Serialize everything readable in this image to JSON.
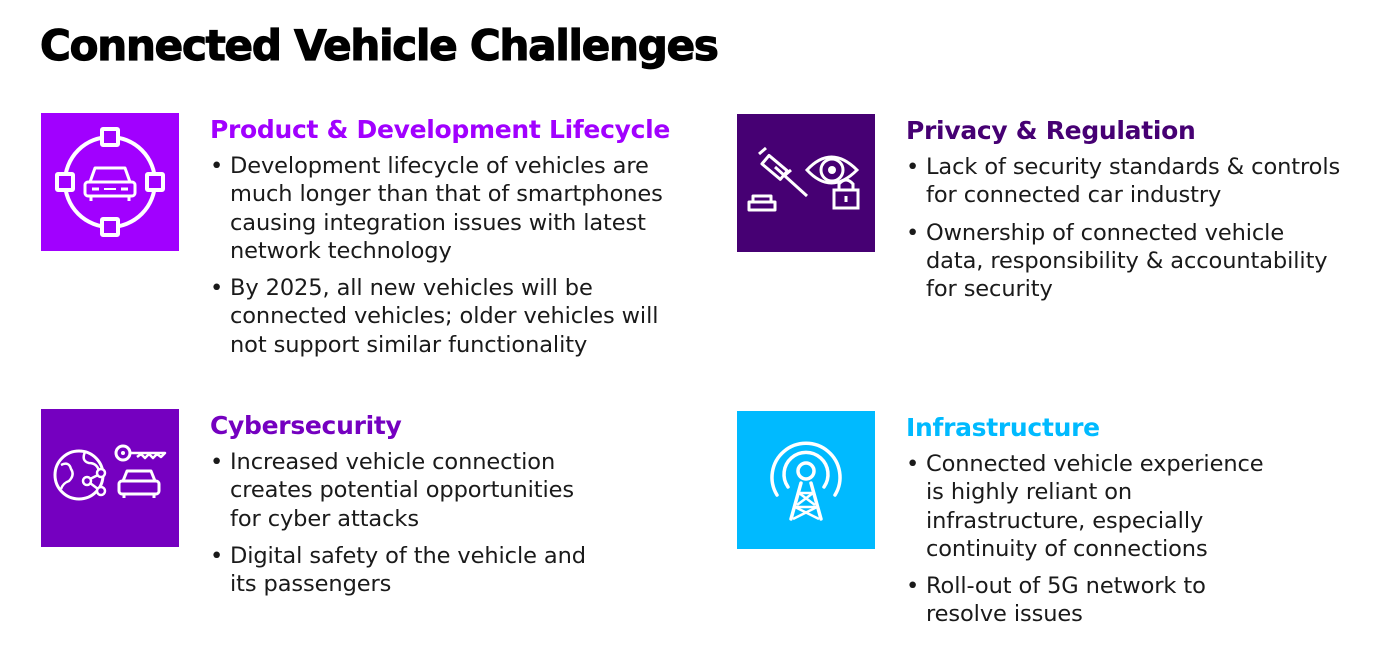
{
  "title": "Connected Vehicle Challenges",
  "colors": {
    "purple": "#a100ff",
    "dark_purple": "#460073",
    "mid_purple": "#7500c0",
    "cyan": "#00baff",
    "text": "#1a1a1a"
  },
  "sections": [
    {
      "heading": "Product & Development Lifecycle",
      "heading_color": "#a100ff",
      "icon": "car-lifecycle-icon",
      "tile_color": "#a100ff",
      "bullets": [
        "Development lifecycle of vehicles are much longer than that of smartphones causing integration issues with latest network technology",
        "By 2025, all new vehicles will be connected vehicles; older vehicles will not support similar functionality"
      ]
    },
    {
      "heading": "Privacy & Regulation",
      "heading_color": "#460073",
      "icon": "gavel-eye-lock-icon",
      "tile_color": "#460073",
      "bullets": [
        "Lack of security standards & controls for connected car industry",
        "Ownership of connected vehicle data, responsibility & accountability for security"
      ]
    },
    {
      "heading": "Cybersecurity",
      "heading_color": "#7500c0",
      "icon": "globe-key-car-icon",
      "tile_color": "#7500c0",
      "bullets": [
        "Increased vehicle connection creates potential opportunities for cyber attacks",
        "Digital safety of the vehicle and its passengers"
      ]
    },
    {
      "heading": "Infrastructure",
      "heading_color": "#00baff",
      "icon": "signal-tower-icon",
      "tile_color": "#00baff",
      "bullets": [
        "Connected vehicle experience is highly reliant on infrastructure, especially continuity of connections",
        "Roll-out of 5G network to resolve issues"
      ]
    }
  ]
}
